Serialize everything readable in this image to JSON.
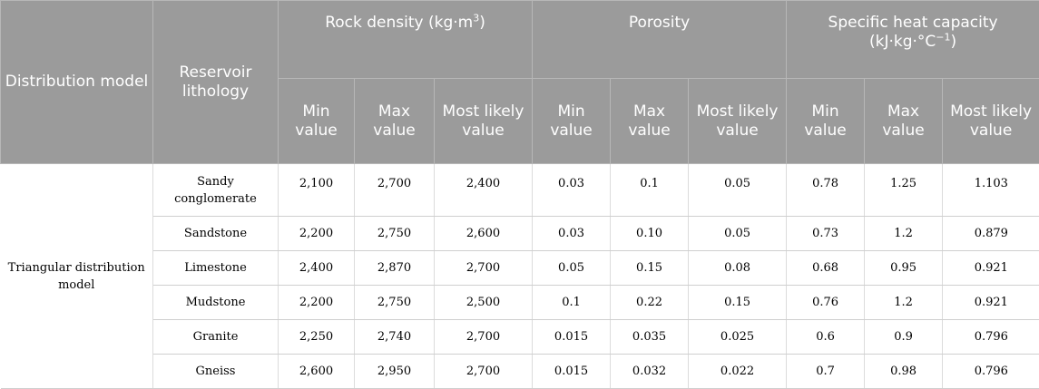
{
  "headers": {
    "distribution_model": "Distribution model",
    "reservoir_lithology": "Reservoir lithology",
    "groups": {
      "rock_density": {
        "label": "Rock density (kg·m",
        "sup": "3",
        "label_end": ")"
      },
      "porosity": {
        "label": "Porosity"
      },
      "specific_heat": {
        "label": "Specific heat capacity",
        "unit_prefix": "(kJ·kg·°C",
        "sup": "−1",
        "unit_end": ")"
      }
    },
    "sub": {
      "min": "Min value",
      "max": "Max value",
      "most_likely": "Most likely value"
    }
  },
  "distribution_label": "Triangular distribution model",
  "rows": [
    {
      "lithology": "Sandy conglomerate",
      "density_min": "2,100",
      "density_max": "2,700",
      "density_ml": "2,400",
      "porosity_min": "0.03",
      "porosity_max": "0.1",
      "porosity_ml": "0.05",
      "heat_min": "0.78",
      "heat_max": "1.25",
      "heat_ml": "1.103"
    },
    {
      "lithology": "Sandstone",
      "density_min": "2,200",
      "density_max": "2,750",
      "density_ml": "2,600",
      "porosity_min": "0.03",
      "porosity_max": "0.10",
      "porosity_ml": "0.05",
      "heat_min": "0.73",
      "heat_max": "1.2",
      "heat_ml": "0.879"
    },
    {
      "lithology": "Limestone",
      "density_min": "2,400",
      "density_max": "2,870",
      "density_ml": "2,700",
      "porosity_min": "0.05",
      "porosity_max": "0.15",
      "porosity_ml": "0.08",
      "heat_min": "0.68",
      "heat_max": "0.95",
      "heat_ml": "0.921"
    },
    {
      "lithology": "Mudstone",
      "density_min": "2,200",
      "density_max": "2,750",
      "density_ml": "2,500",
      "porosity_min": "0.1",
      "porosity_max": "0.22",
      "porosity_ml": "0.15",
      "heat_min": "0.76",
      "heat_max": "1.2",
      "heat_ml": "0.921"
    },
    {
      "lithology": "Granite",
      "density_min": "2,250",
      "density_max": "2,740",
      "density_ml": "2,700",
      "porosity_min": "0.015",
      "porosity_max": "0.035",
      "porosity_ml": "0.025",
      "heat_min": "0.6",
      "heat_max": "0.9",
      "heat_ml": "0.796"
    },
    {
      "lithology": "Gneiss",
      "density_min": "2,600",
      "density_max": "2,950",
      "density_ml": "2,700",
      "porosity_min": "0.015",
      "porosity_max": "0.032",
      "porosity_ml": "0.022",
      "heat_min": "0.7",
      "heat_max": "0.98",
      "heat_ml": "0.796"
    }
  ]
}
